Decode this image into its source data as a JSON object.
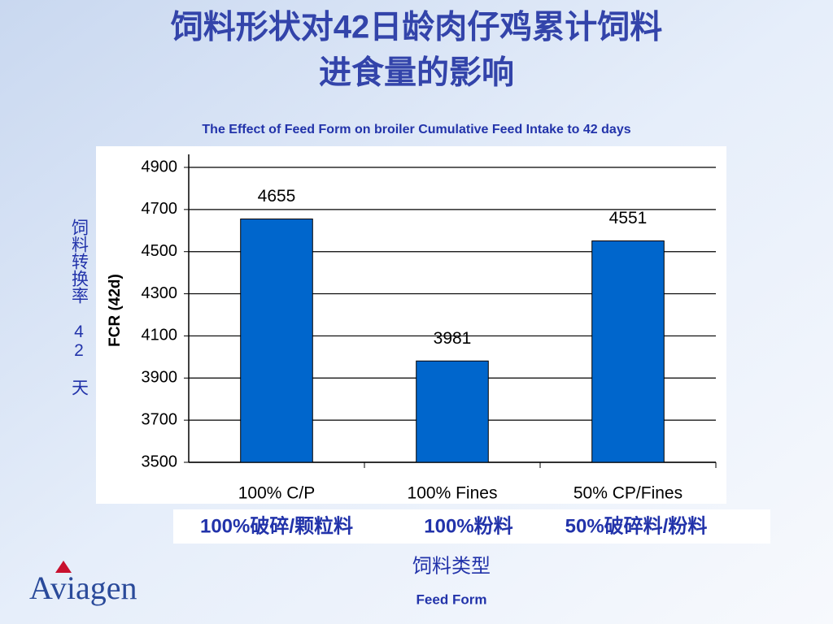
{
  "chart_data": {
    "type": "bar",
    "title": [
      "饲料形状对42日龄肉仔鸡累计饲料",
      "进食量的影响"
    ],
    "subtitle": "The Effect of Feed Form on broiler Cumulative Feed Intake to 42 days",
    "ylabel": "FCR (42d)",
    "ylabel_cn": "饲料转换率 42 天",
    "categories": [
      "100% C/P",
      "100% Fines",
      "50% CP/Fines"
    ],
    "categories_cn": [
      "100%破碎/颗粒料",
      "100%粉料",
      "50%破碎料/粉料"
    ],
    "xlabel_cn": "饲料类型",
    "xlabel": "Feed Form",
    "values": [
      4655,
      3981,
      4551
    ],
    "color": "#0066cc",
    "ylim": [
      3500,
      4900
    ],
    "yticks": [
      3500,
      3700,
      3900,
      4100,
      4300,
      4500,
      4700,
      4900
    ],
    "grid": true,
    "logo": "Aviagen"
  }
}
